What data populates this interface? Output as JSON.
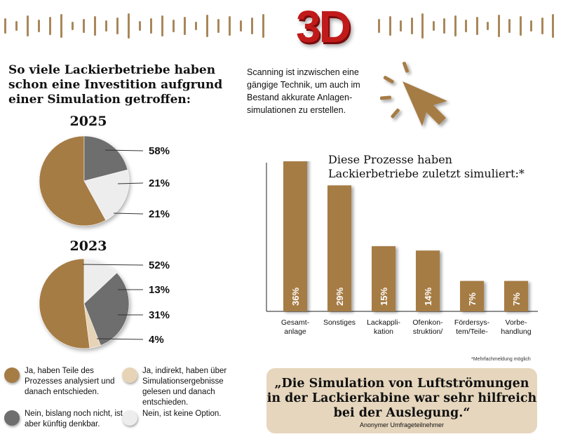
{
  "header": {
    "title": "3D"
  },
  "colors": {
    "brown": "#a67c45",
    "dark_gray": "#6e6e6e",
    "light_gray": "#ededed",
    "beige": "#e7d4b6",
    "title_red": "#c11a1a"
  },
  "survey": {
    "heading": "So viele Lackierbetriebe haben schon eine Investition aufgrund einer Simulation getroffen:"
  },
  "scan_text": "Scanning ist inzwischen eine gängige Technik, um auch im Bestand akkurate Anlagen­simulationen zu erstellen.",
  "cursor_icon": "mouse-cursor-click-icon",
  "legend": [
    {
      "key": "ja-teile",
      "label": "Ja, haben Teile des Prozesses analysiert und danach entschieden.",
      "color": "#a67c45"
    },
    {
      "key": "ja-indirekt",
      "label": "Ja, indirekt, haben über Simulationsergebnisse gelesen und danach entschieden.",
      "color": "#e7d4b6"
    },
    {
      "key": "nein-kuenftig",
      "label": "Nein, bislang noch nicht, ist aber künftig denkbar.",
      "color": "#6e6e6e"
    },
    {
      "key": "nein-option",
      "label": "Nein, ist keine Option.",
      "color": "#ededed"
    }
  ],
  "bar_heading": "Diese Prozesse haben Lackierbetriebe zuletzt simuliert:*",
  "footnote": "*Mehrfachmeldung möglich",
  "quote": {
    "text": "„Die Simulation von Luftströmungen in der Lackierkabine war sehr hilfreich bei der Auslegung.“",
    "author": "Anonymer Umfrageteilnehmer"
  },
  "chart_data": [
    {
      "type": "pie",
      "title": "2025",
      "slices": [
        {
          "label": "Ja, haben Teile des Prozesses analysiert und danach entschieden.",
          "value": 58,
          "display": "58%",
          "color": "#a67c45"
        },
        {
          "label": "Nein, bislang noch nicht, ist aber künftig denkbar.",
          "value": 21,
          "display": "21%",
          "color": "#6e6e6e"
        },
        {
          "label": "Nein, ist keine Option.",
          "value": 21,
          "display": "21%",
          "color": "#ededed"
        }
      ]
    },
    {
      "type": "pie",
      "title": "2023",
      "slices": [
        {
          "label": "Ja, haben Teile des Prozesses analysiert und danach entschieden.",
          "value": 52,
          "display": "52%",
          "color": "#a67c45"
        },
        {
          "label": "Nein, ist keine Option.",
          "value": 13,
          "display": "13%",
          "color": "#ededed"
        },
        {
          "label": "Nein, bislang noch nicht, ist aber künftig denkbar.",
          "value": 31,
          "display": "31%",
          "color": "#6e6e6e"
        },
        {
          "label": "Ja, indirekt, haben über Simulationsergebnisse gelesen und danach entschieden.",
          "value": 4,
          "display": "4%",
          "color": "#e7d4b6"
        }
      ]
    },
    {
      "type": "bar",
      "title": "Diese Prozesse haben Lackierbetriebe zuletzt simuliert:*",
      "categories": [
        "Gesamt-\nanlage",
        "Sonstiges",
        "Lackappli-\nkation",
        "Ofenkon-\nstruktion/\nTrocknung",
        "Fördersys-\ntem/Teile-\nströme",
        "Vorbe-\nhandlung"
      ],
      "values": [
        36,
        29,
        15,
        14,
        7,
        7
      ],
      "value_labels": [
        "36%",
        "29%",
        "15%",
        "14%",
        "7%",
        "7%"
      ],
      "ylim": [
        0,
        40
      ],
      "grid": false
    }
  ]
}
